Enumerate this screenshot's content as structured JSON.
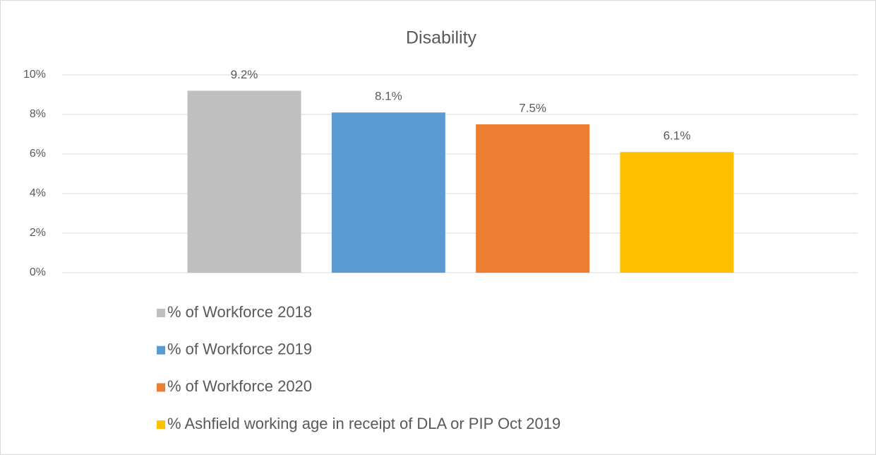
{
  "chart_data": {
    "type": "bar",
    "title": "Disability",
    "categories": [
      null
    ],
    "series": [
      {
        "name": "% of Workforce 2018",
        "color": "#bfbfbf",
        "values": [
          9.2
        ],
        "value_labels": [
          "9.2%"
        ]
      },
      {
        "name": "% of Workforce 2019",
        "color": "#5b9bd5",
        "values": [
          8.1
        ],
        "value_labels": [
          "8.1%"
        ]
      },
      {
        "name": "% of Workforce 2020",
        "color": "#ed7d31",
        "values": [
          7.5
        ],
        "value_labels": [
          "7.5%"
        ]
      },
      {
        "name": "% Ashfield working age in receipt of DLA or PIP Oct 2019",
        "color": "#ffc000",
        "values": [
          6.1
        ],
        "value_labels": [
          "6.1%"
        ]
      }
    ],
    "ylim": [
      0,
      10
    ],
    "yticks": [
      {
        "value": 0,
        "label": "0%"
      },
      {
        "value": 2,
        "label": "2%"
      },
      {
        "value": 4,
        "label": "4%"
      },
      {
        "value": 6,
        "label": "6%"
      },
      {
        "value": 8,
        "label": "8%"
      },
      {
        "value": 10,
        "label": "10%"
      }
    ],
    "grid": true,
    "legend": "bottom"
  }
}
